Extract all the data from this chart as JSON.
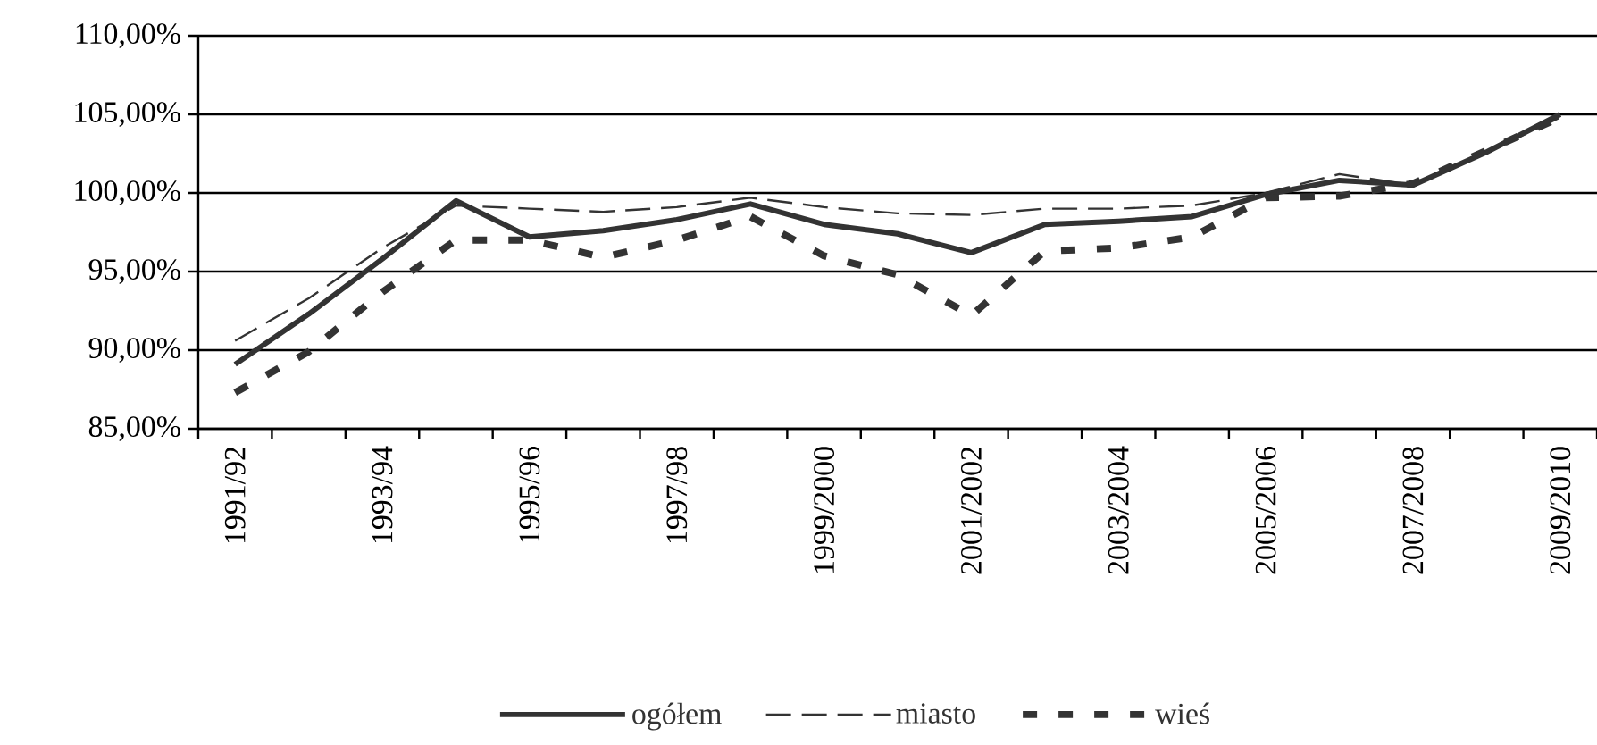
{
  "chart_data": {
    "type": "line",
    "categories": [
      "1991/92",
      null,
      "1993/94",
      null,
      "1995/96",
      null,
      "1997/98",
      null,
      "1999/2000",
      null,
      "2001/2002",
      null,
      "2003/2004",
      null,
      "2005/2006",
      null,
      "2007/2008",
      null,
      "2009/2010"
    ],
    "series": [
      {
        "name": "ogółem",
        "color": "#333333",
        "line_style": "solid",
        "values": [
          89.1,
          92.3,
          95.8,
          99.5,
          97.2,
          97.6,
          98.3,
          99.3,
          98.0,
          97.4,
          96.2,
          98.0,
          98.2,
          98.5,
          99.9,
          100.8,
          100.5,
          102.6,
          105.0
        ]
      },
      {
        "name": "miasto",
        "color": "#333333",
        "line_style": "dashed",
        "values": [
          90.6,
          93.3,
          96.5,
          99.2,
          99.0,
          98.8,
          99.1,
          99.7,
          99.1,
          98.7,
          98.6,
          99.0,
          99.0,
          99.2,
          100.0,
          101.2,
          100.5,
          102.6,
          104.8
        ]
      },
      {
        "name": "wieś",
        "color": "#333333",
        "line_style": "dotted",
        "values": [
          87.3,
          89.9,
          93.7,
          97.0,
          97.0,
          95.9,
          97.0,
          98.5,
          96.0,
          94.8,
          92.2,
          96.3,
          96.5,
          97.2,
          99.7,
          99.8,
          100.6,
          102.7,
          104.8
        ]
      }
    ],
    "ylim": [
      85,
      110
    ],
    "yticks": [
      {
        "value": 85,
        "label": "85,00%"
      },
      {
        "value": 90,
        "label": "90,00%"
      },
      {
        "value": 95,
        "label": "95,00%"
      },
      {
        "value": 100,
        "label": "100,00%"
      },
      {
        "value": 105,
        "label": "105,00%"
      },
      {
        "value": 110,
        "label": "110,00%"
      }
    ],
    "grid": "y",
    "legend": "bottom"
  }
}
